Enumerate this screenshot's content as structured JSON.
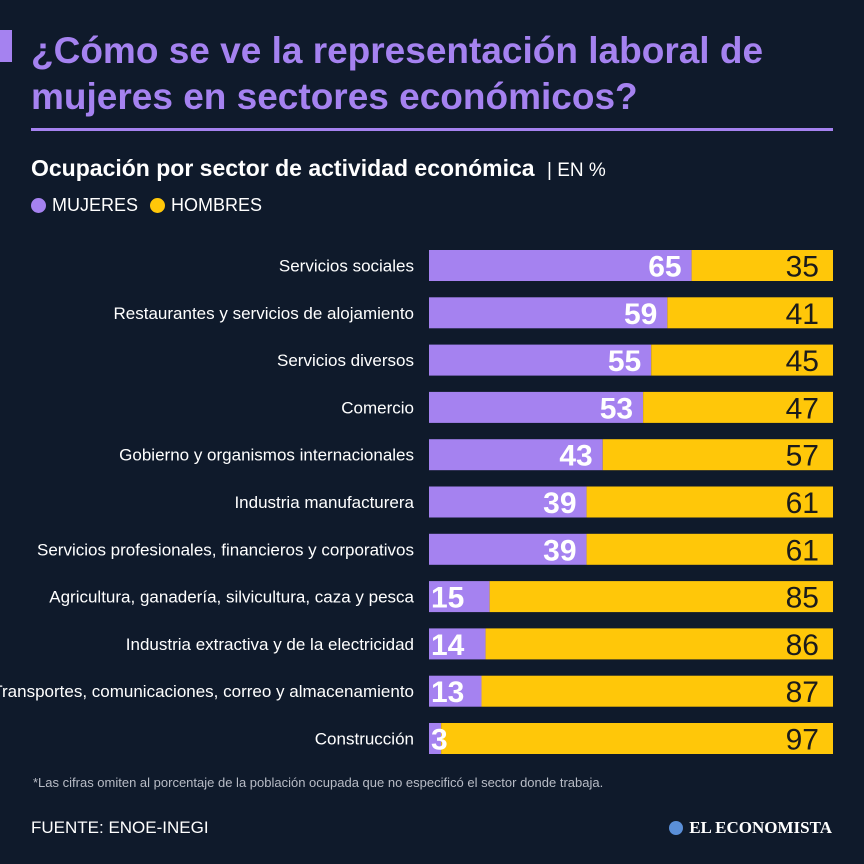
{
  "header": {
    "title": "¿Cómo se ve la representación laboral de mujeres en sectores económicos?",
    "subtitle": "Ocupación por sector de actividad económica",
    "unit": "| EN %"
  },
  "colors": {
    "accent": "#a582f0",
    "mujeres": "#a582f0",
    "hombres": "#ffc709",
    "background": "#0f1a2b"
  },
  "chart_data": {
    "type": "bar",
    "orientation": "horizontal-stacked-100",
    "title": "Ocupación por sector de actividad económica",
    "unit": "EN %",
    "categories": [
      "Servicios sociales",
      "Restaurantes y servicios de alojamiento",
      "Servicios diversos",
      "Comercio",
      "Gobierno y organismos internacionales",
      "Industria manufacturera",
      "Servicios profesionales, financieros y corporativos",
      "Agricultura, ganadería, silvicultura, caza y pesca",
      "Industria extractiva y de la electricidad",
      "Transportes, comunicaciones, correo y almacenamiento",
      "Construcción"
    ],
    "series": [
      {
        "name": "MUJERES",
        "values": [
          65,
          59,
          55,
          53,
          43,
          39,
          39,
          15,
          14,
          13,
          3
        ]
      },
      {
        "name": "HOMBRES",
        "values": [
          35,
          41,
          45,
          47,
          57,
          61,
          61,
          85,
          86,
          87,
          97
        ]
      }
    ],
    "xlim": [
      0,
      100
    ],
    "legend": "top-left"
  },
  "footer": {
    "note": "*Las cifras omiten al porcentaje de la población ocupada que no especificó el sector donde trabaja.",
    "source": "FUENTE: ENOE-INEGI",
    "brand": "EL ECONOMISTA"
  }
}
